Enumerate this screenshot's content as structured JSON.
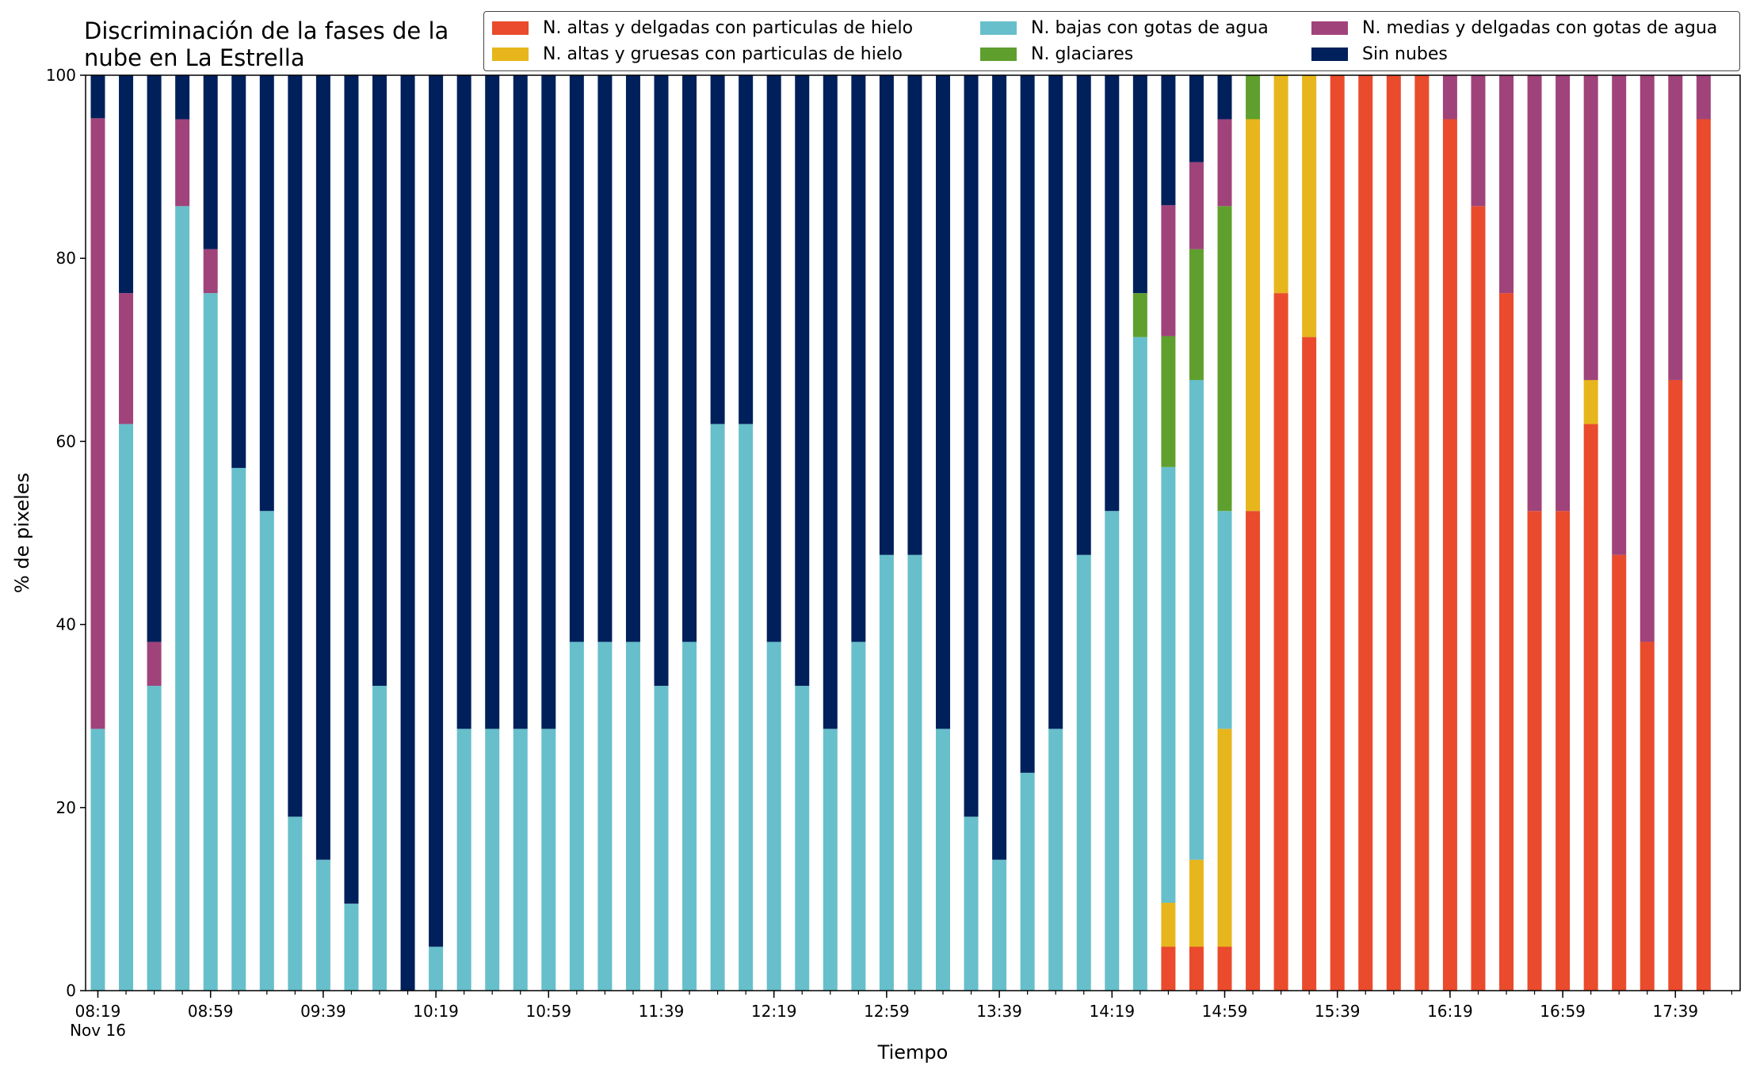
{
  "chart_data": {
    "type": "bar",
    "stacked": true,
    "title": "Discriminación de la fases de la nube en La Estrella",
    "xlabel": "Tiempo",
    "ylabel": "% de pixeles",
    "ylim": [
      0,
      100
    ],
    "yticks": [
      "0",
      "20",
      "40",
      "60",
      "80",
      "100"
    ],
    "xtick_labels": [
      "08:19",
      "08:59",
      "09:39",
      "10:19",
      "10:59",
      "11:39",
      "12:19",
      "12:59",
      "13:39",
      "14:19",
      "14:59",
      "15:39",
      "16:19",
      "16:59",
      "17:39"
    ],
    "date_label": "Nov 16",
    "start_time": "08:19",
    "interval_minutes": 10,
    "grid": false,
    "legend_position": "top-right",
    "series": [
      {
        "name": "N. altas y delgadas con particulas de hielo",
        "color": "#e94b2c",
        "values": [
          0,
          0,
          0,
          0,
          0,
          0,
          0,
          0,
          0,
          0,
          0,
          0,
          0,
          0,
          0,
          0,
          0,
          0,
          0,
          0,
          0,
          0,
          0,
          0,
          0,
          0,
          0,
          0,
          0,
          0,
          0,
          0,
          0,
          0,
          0,
          0,
          0,
          0,
          4.8,
          4.8,
          4.8,
          52.4,
          76.2,
          71.4,
          100,
          100,
          100,
          100,
          95.2,
          85.7,
          76.2,
          52.4,
          52.4,
          61.9,
          47.6,
          38.1,
          66.7,
          95.2
        ]
      },
      {
        "name": "N. altas y gruesas con particulas de hielo",
        "color": "#e6b61c",
        "values": [
          0,
          0,
          0,
          0,
          0,
          0,
          0,
          0,
          0,
          0,
          0,
          0,
          0,
          0,
          0,
          0,
          0,
          0,
          0,
          0,
          0,
          0,
          0,
          0,
          0,
          0,
          0,
          0,
          0,
          0,
          0,
          0,
          0,
          0,
          0,
          0,
          0,
          0,
          4.8,
          9.5,
          23.8,
          42.8,
          23.8,
          28.6,
          0,
          0,
          0,
          0,
          0,
          0,
          0,
          0,
          0,
          4.8,
          0,
          0,
          0,
          0
        ]
      },
      {
        "name": "N. bajas con gotas de agua",
        "color": "#67bfcb",
        "values": [
          28.6,
          61.9,
          33.3,
          85.7,
          76.2,
          57.1,
          52.4,
          19.0,
          14.3,
          9.5,
          33.3,
          0,
          4.8,
          28.6,
          28.6,
          28.6,
          28.6,
          38.1,
          38.1,
          38.1,
          33.3,
          38.1,
          61.9,
          61.9,
          38.1,
          33.3,
          28.6,
          38.1,
          47.6,
          47.6,
          28.6,
          19.0,
          14.3,
          23.8,
          28.6,
          47.6,
          52.4,
          71.4,
          47.6,
          52.4,
          23.8,
          0,
          0,
          0,
          0,
          0,
          0,
          0,
          0,
          0,
          0,
          0,
          0,
          0,
          0,
          0,
          0,
          0
        ]
      },
      {
        "name": "N. glaciares",
        "color": "#5f9f2e",
        "values": [
          0,
          0,
          0,
          0,
          0,
          0,
          0,
          0,
          0,
          0,
          0,
          0,
          0,
          0,
          0,
          0,
          0,
          0,
          0,
          0,
          0,
          0,
          0,
          0,
          0,
          0,
          0,
          0,
          0,
          0,
          0,
          0,
          0,
          0,
          0,
          0,
          0,
          4.8,
          14.3,
          14.3,
          33.3,
          4.8,
          0,
          0,
          0,
          0,
          0,
          0,
          0,
          0,
          0,
          0,
          0,
          0,
          0,
          0,
          0,
          0
        ]
      },
      {
        "name": "N. medias y delgadas con gotas de agua",
        "color": "#a0437a",
        "values": [
          66.7,
          14.3,
          4.8,
          9.5,
          4.8,
          0,
          0,
          0,
          0,
          0,
          0,
          0,
          0,
          0,
          0,
          0,
          0,
          0,
          0,
          0,
          0,
          0,
          0,
          0,
          0,
          0,
          0,
          0,
          0,
          0,
          0,
          0,
          0,
          0,
          0,
          0,
          0,
          0,
          14.3,
          9.5,
          9.5,
          0,
          0,
          0,
          0,
          0,
          0,
          0,
          4.8,
          14.3,
          23.8,
          47.6,
          47.6,
          33.3,
          52.4,
          61.9,
          33.3,
          4.8
        ]
      },
      {
        "name": "Sin nubes",
        "color": "#00205b",
        "values": [
          4.7,
          23.8,
          61.9,
          4.8,
          19.0,
          42.9,
          47.6,
          81.0,
          85.7,
          90.5,
          66.7,
          100,
          95.2,
          71.4,
          71.4,
          71.4,
          71.4,
          61.9,
          61.9,
          61.9,
          66.7,
          61.9,
          38.1,
          38.1,
          61.9,
          66.7,
          71.4,
          61.9,
          52.4,
          52.4,
          71.4,
          81.0,
          85.7,
          76.2,
          71.4,
          52.4,
          47.6,
          23.8,
          14.2,
          9.5,
          4.8,
          0,
          0,
          0,
          0,
          0,
          0,
          0,
          0,
          0,
          0,
          0,
          0,
          0,
          0,
          0,
          0,
          0
        ]
      }
    ]
  }
}
